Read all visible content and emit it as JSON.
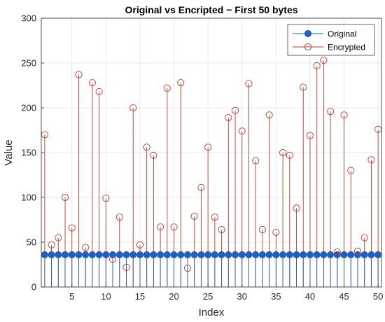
{
  "chart_data": {
    "type": "stem",
    "title": "Original vs Encripted − First 50 bytes",
    "xlabel": "Index",
    "ylabel": "Value",
    "xlim": [
      0.5,
      50.5
    ],
    "ylim": [
      0,
      300
    ],
    "xticks": [
      5,
      10,
      15,
      20,
      25,
      30,
      35,
      40,
      45,
      50
    ],
    "yticks": [
      0,
      50,
      100,
      150,
      200,
      250,
      300
    ],
    "grid": true,
    "legend_position": "top-right",
    "x": [
      1,
      2,
      3,
      4,
      5,
      6,
      7,
      8,
      9,
      10,
      11,
      12,
      13,
      14,
      15,
      16,
      17,
      18,
      19,
      20,
      21,
      22,
      23,
      24,
      25,
      26,
      27,
      28,
      29,
      30,
      31,
      32,
      33,
      34,
      35,
      36,
      37,
      38,
      39,
      40,
      41,
      42,
      43,
      44,
      45,
      46,
      47,
      48,
      49,
      50
    ],
    "series": [
      {
        "name": "Original",
        "marker": "filled-circle",
        "color": "#1f5fbf",
        "values": [
          36,
          36,
          36,
          36,
          36,
          36,
          36,
          36,
          36,
          36,
          36,
          36,
          36,
          36,
          36,
          36,
          36,
          36,
          36,
          36,
          36,
          36,
          36,
          36,
          36,
          36,
          36,
          36,
          36,
          36,
          36,
          36,
          36,
          36,
          36,
          36,
          36,
          36,
          36,
          36,
          36,
          36,
          36,
          36,
          36,
          36,
          36,
          36,
          36,
          36
        ]
      },
      {
        "name": "Encrypted",
        "marker": "open-circle",
        "color": "#c0392b",
        "values": [
          170,
          47,
          55,
          100,
          66,
          237,
          44,
          228,
          218,
          99,
          31,
          78,
          22,
          200,
          47,
          156,
          147,
          67,
          222,
          67,
          228,
          21,
          79,
          111,
          156,
          78,
          64,
          189,
          197,
          174,
          227,
          141,
          64,
          192,
          61,
          150,
          147,
          88,
          223,
          169,
          247,
          253,
          196,
          39,
          192,
          130,
          40,
          55,
          142,
          176
        ]
      }
    ]
  }
}
